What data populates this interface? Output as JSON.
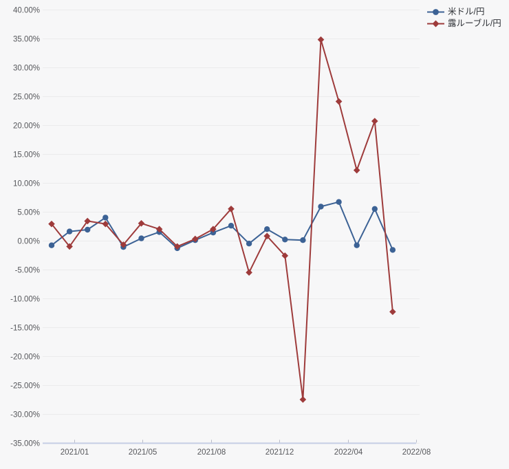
{
  "chart_data": {
    "type": "line",
    "title": "",
    "x": [
      "2020/12",
      "2021/01",
      "2021/02",
      "2021/03",
      "2021/04",
      "2021/05",
      "2021/06",
      "2021/07",
      "2021/08",
      "2021/09",
      "2021/10",
      "2021/11",
      "2021/12",
      "2022/01",
      "2022/02",
      "2022/03",
      "2022/04",
      "2022/05",
      "2022/06",
      "2022/07"
    ],
    "series": [
      {
        "name": "米ドル/円",
        "color": "#3c6295",
        "marker": "circle",
        "values": [
          -0.8,
          1.6,
          1.9,
          4.0,
          -1.1,
          0.4,
          1.5,
          -1.3,
          0.1,
          1.4,
          2.6,
          -0.5,
          2.0,
          0.2,
          0.1,
          5.9,
          6.7,
          -0.8,
          5.5,
          -1.6
        ]
      },
      {
        "name": "露ルーブル/円",
        "color": "#9e3b3b",
        "marker": "diamond",
        "values": [
          2.9,
          -1.0,
          3.4,
          2.9,
          -0.7,
          3.0,
          2.0,
          -1.0,
          0.3,
          2.0,
          5.5,
          -5.5,
          0.8,
          -2.6,
          -27.5,
          34.8,
          24.1,
          12.2,
          20.7,
          -12.3
        ]
      }
    ],
    "xlabel": "",
    "ylabel": "",
    "ylim": [
      -35,
      40
    ],
    "y_axis": {
      "min": -35,
      "max": 40,
      "step": 5,
      "unit": "%"
    },
    "y_tick_labels": [
      "40.00%",
      "35.00%",
      "30.00%",
      "25.00%",
      "20.00%",
      "15.00%",
      "10.00%",
      "5.00%",
      "0.00%",
      "-5.00%",
      "-10.00%",
      "-15.00%",
      "-20.00%",
      "-25.00%",
      "-30.00%",
      "-35.00%"
    ],
    "x_tick_labels": [
      "2021/01",
      "2021/05",
      "2021/08",
      "2021/12",
      "2022/04",
      "2022/08"
    ],
    "grid": true,
    "legend_position": "top-right"
  },
  "colors": {
    "background": "#f7f7f8",
    "gridline": "#ebebec",
    "axis_line": "#c5cde4",
    "tick": "#b9bcc8",
    "axis_text": "#56575b",
    "legend_text": "#2b2e33"
  }
}
